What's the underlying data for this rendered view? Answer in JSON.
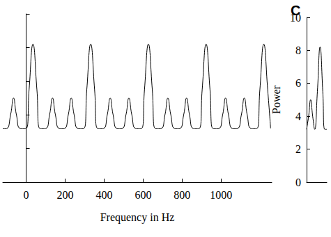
{
  "chart_data": [
    {
      "type": "line",
      "x_label": "Frequency in Hz",
      "color": "#000000",
      "tick_labels": "x",
      "xlim": [
        -120,
        1260
      ],
      "xticks": [
        0,
        200,
        400,
        600,
        800,
        1000
      ],
      "ylim": [
        0,
        10
      ],
      "yticks": [
        0,
        2,
        4,
        6,
        8,
        10
      ],
      "x": [
        -120,
        -100,
        -80,
        -65,
        -50,
        -30,
        0,
        15,
        35,
        55,
        70,
        100,
        120,
        135,
        150,
        170,
        196,
        216,
        231,
        246,
        266,
        296,
        311,
        331,
        351,
        366,
        396,
        416,
        431,
        446,
        466,
        492,
        512,
        527,
        542,
        562,
        592,
        607,
        627,
        647,
        662,
        692,
        712,
        727,
        742,
        762,
        788,
        808,
        823,
        838,
        858,
        888,
        903,
        923,
        943,
        958,
        988,
        1008,
        1023,
        1038,
        1058,
        1084,
        1104,
        1119,
        1134,
        1154,
        1184,
        1199,
        1219,
        1239,
        1254
      ],
      "values": [
        3.2,
        3.2,
        4.0,
        5.0,
        4.0,
        3.2,
        3.2,
        5.5,
        8.2,
        5.5,
        3.2,
        3.2,
        4.0,
        5.0,
        4.0,
        3.2,
        3.2,
        4.0,
        5.0,
        4.0,
        3.2,
        3.2,
        5.5,
        8.2,
        5.5,
        3.2,
        3.2,
        4.0,
        5.0,
        4.0,
        3.2,
        3.2,
        4.0,
        5.0,
        4.0,
        3.2,
        3.2,
        5.5,
        8.2,
        5.5,
        3.2,
        3.2,
        4.0,
        5.0,
        4.0,
        3.2,
        3.2,
        4.0,
        5.0,
        4.0,
        3.2,
        3.2,
        5.5,
        8.2,
        5.5,
        3.2,
        3.2,
        4.0,
        5.0,
        4.0,
        3.2,
        3.2,
        4.0,
        5.0,
        4.0,
        3.2,
        3.2,
        5.5,
        8.2,
        5.5,
        3.2
      ]
    },
    {
      "type": "line",
      "title": "C",
      "y_label": "Power",
      "color": "#000000",
      "tick_labels": "y",
      "xlim": [
        0,
        150
      ],
      "ylim": [
        0,
        10
      ],
      "yticks": [
        0,
        2,
        4,
        6,
        8,
        10
      ],
      "x": [
        0,
        15,
        30,
        45,
        60,
        80,
        100,
        120,
        135,
        150
      ],
      "values": [
        3.2,
        4.0,
        5.0,
        4.0,
        3.2,
        5.5,
        8.2,
        5.5,
        3.2,
        3.2
      ]
    }
  ]
}
